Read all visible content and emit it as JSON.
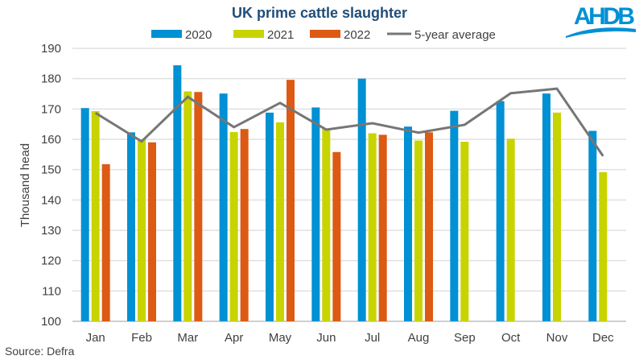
{
  "chart_data": {
    "type": "bar",
    "title": "UK prime cattle slaughter",
    "ylabel": "Thousand head",
    "xlabel": "",
    "ylim": [
      100,
      190
    ],
    "yticks": [
      100,
      110,
      120,
      130,
      140,
      150,
      160,
      170,
      180,
      190
    ],
    "grid": true,
    "legend_placement": "top",
    "categories": [
      "Jan",
      "Feb",
      "Mar",
      "Apr",
      "May",
      "Jun",
      "Jul",
      "Aug",
      "Sep",
      "Oct",
      "Nov",
      "Dec"
    ],
    "series": [
      {
        "name": "2020",
        "kind": "bar",
        "color": "#0090d4",
        "values": [
          170.3,
          162.3,
          184.4,
          175.1,
          168.8,
          170.5,
          180.0,
          164.2,
          169.4,
          172.6,
          175.1,
          162.8
        ]
      },
      {
        "name": "2021",
        "kind": "bar",
        "color": "#c8d400",
        "values": [
          169.3,
          160.0,
          175.8,
          162.4,
          165.6,
          163.5,
          162.0,
          159.6,
          159.2,
          160.2,
          168.8,
          149.2
        ]
      },
      {
        "name": "2022",
        "kind": "bar",
        "color": "#dc5a14",
        "values": [
          151.8,
          159.0,
          175.6,
          163.4,
          179.6,
          155.8,
          161.5,
          162.3,
          null,
          null,
          null,
          null
        ]
      },
      {
        "name": "5-year average",
        "kind": "line",
        "color": "#767676",
        "values": [
          168.7,
          159.3,
          174.0,
          164.0,
          172.0,
          163.2,
          165.3,
          162.2,
          164.8,
          175.2,
          176.7,
          154.5
        ]
      }
    ]
  },
  "source": "Source: Defra",
  "logo": {
    "text": "AHDB",
    "color": "#0090d4"
  }
}
